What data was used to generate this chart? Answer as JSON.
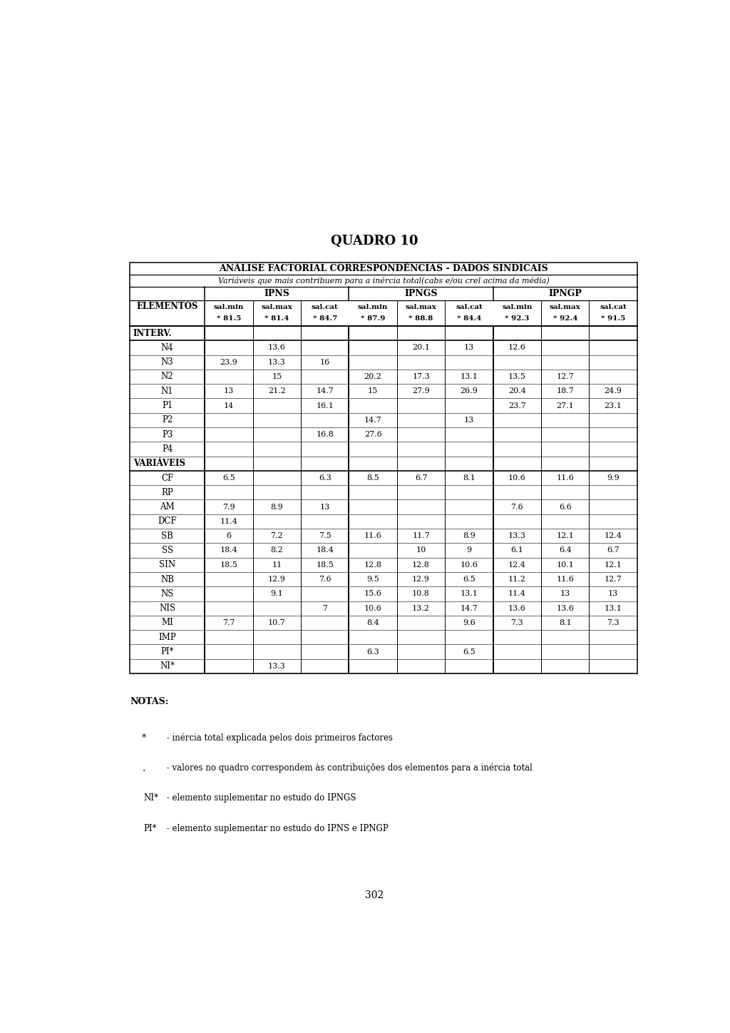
{
  "title": "QUADRO 10",
  "subtitle1": "ANÁLISE FACTORIAL CORRESPONDÊNCIAS - DADOS SINDICAIS",
  "subtitle2": "Variáveis que mais contribuem para a inércia total(cabs e/ou crel acima da média)",
  "col_headers_line1": [
    "sal.min",
    "sal.max",
    "sal.cat",
    "sal.min",
    "sal.max",
    "sal.cat",
    "sal.min",
    "sal.max",
    "sal.cat"
  ],
  "col_headers_line2": [
    "* 81.5",
    "* 81.4",
    "* 84.7",
    "* 87.9",
    "* 88.8",
    "* 84.4",
    "* 92.3",
    "* 92.4",
    "* 91.5"
  ],
  "rows": [
    {
      "label": "INTERV.",
      "section_header": true,
      "data": [
        "",
        "",
        "",
        "",
        "",
        "",
        "",
        "",
        ""
      ]
    },
    {
      "label": "N4",
      "section_header": false,
      "data": [
        "",
        "13.6",
        "",
        "",
        "20.1",
        "13",
        "12.6",
        "",
        ""
      ]
    },
    {
      "label": "N3",
      "section_header": false,
      "data": [
        "23.9",
        "13.3",
        "16",
        "",
        "",
        "",
        "",
        "",
        ""
      ]
    },
    {
      "label": "N2",
      "section_header": false,
      "data": [
        "",
        "15",
        "",
        "20.2",
        "17.3",
        "13.1",
        "13.5",
        "12.7",
        ""
      ]
    },
    {
      "label": "N1",
      "section_header": false,
      "data": [
        "13",
        "21.2",
        "14.7",
        "15",
        "27.9",
        "26.9",
        "20.4",
        "18.7",
        "24.9"
      ]
    },
    {
      "label": "P1",
      "section_header": false,
      "data": [
        "14",
        "",
        "16.1",
        "",
        "",
        "",
        "23.7",
        "27.1",
        "23.1"
      ]
    },
    {
      "label": "P2",
      "section_header": false,
      "data": [
        "",
        "",
        "",
        "14.7",
        "",
        "13",
        "",
        "",
        ""
      ]
    },
    {
      "label": "P3",
      "section_header": false,
      "data": [
        "",
        "",
        "16.8",
        "27.6",
        "",
        "",
        "",
        "",
        ""
      ]
    },
    {
      "label": "P4",
      "section_header": false,
      "data": [
        "",
        "",
        "",
        "",
        "",
        "",
        "",
        "",
        ""
      ]
    },
    {
      "label": "VARIÁVEIS",
      "section_header": true,
      "data": [
        "",
        "",
        "",
        "",
        "",
        "",
        "",
        "",
        ""
      ]
    },
    {
      "label": "CF",
      "section_header": false,
      "data": [
        "6.5",
        "",
        "6.3",
        "8.5",
        "6.7",
        "8.1",
        "10.6",
        "11.6",
        "9.9"
      ]
    },
    {
      "label": "RP",
      "section_header": false,
      "data": [
        "",
        "",
        "",
        "",
        "",
        "",
        "",
        "",
        ""
      ]
    },
    {
      "label": "AM",
      "section_header": false,
      "data": [
        "7.9",
        "8.9",
        "13",
        "",
        "",
        "",
        "7.6",
        "6.6",
        ""
      ]
    },
    {
      "label": "DCF",
      "section_header": false,
      "data": [
        "11.4",
        "",
        "",
        "",
        "",
        "",
        "",
        "",
        ""
      ]
    },
    {
      "label": "SB",
      "section_header": false,
      "data": [
        "6",
        "7.2",
        "7.5",
        "11.6",
        "11.7",
        "8.9",
        "13.3",
        "12.1",
        "12.4"
      ]
    },
    {
      "label": "SS",
      "section_header": false,
      "data": [
        "18.4",
        "8.2",
        "18.4",
        "",
        "10",
        "9",
        "6.1",
        "6.4",
        "6.7"
      ]
    },
    {
      "label": "SIN",
      "section_header": false,
      "data": [
        "18.5",
        "11",
        "18.5",
        "12.8",
        "12.8",
        "10.6",
        "12.4",
        "10.1",
        "12.1"
      ]
    },
    {
      "label": "NB",
      "section_header": false,
      "data": [
        "",
        "12.9",
        "7.6",
        "9.5",
        "12.9",
        "6.5",
        "11.2",
        "11.6",
        "12.7"
      ]
    },
    {
      "label": "NS",
      "section_header": false,
      "data": [
        "",
        "9.1",
        "",
        "15.6",
        "10.8",
        "13.1",
        "11.4",
        "13",
        "13"
      ]
    },
    {
      "label": "NIS",
      "section_header": false,
      "data": [
        "",
        "",
        "7",
        "10.6",
        "13.2",
        "14.7",
        "13.6",
        "13.6",
        "13.1"
      ]
    },
    {
      "label": "MI",
      "section_header": false,
      "data": [
        "7.7",
        "10.7",
        "",
        "8.4",
        "",
        "9.6",
        "7.3",
        "8.1",
        "7.3"
      ]
    },
    {
      "label": "IMP",
      "section_header": false,
      "data": [
        "",
        "",
        "",
        "",
        "",
        "",
        "",
        "",
        ""
      ]
    },
    {
      "label": "PI*",
      "section_header": false,
      "data": [
        "",
        "",
        "",
        "6.3",
        "",
        "6.5",
        "",
        "",
        ""
      ]
    },
    {
      "label": "NI*",
      "section_header": false,
      "data": [
        "",
        "13.3",
        "",
        "",
        "",
        "",
        "",
        "",
        ""
      ]
    }
  ],
  "notes": [
    {
      "bullet": "*",
      "text": " - inércia total explicada pelos dois primeiros factores"
    },
    {
      "bullet": ".",
      "text": " - valores no quadro correspondem às contribuições dos elementos para a inércia total"
    },
    {
      "bullet": "NI*",
      "text": " - elemento suplementar no estudo do IPNGS"
    },
    {
      "bullet": "PI*",
      "text": " - elemento suplementar no estudo do IPNS e IPNGP"
    }
  ],
  "page_number": "302",
  "bg": "#ffffff"
}
